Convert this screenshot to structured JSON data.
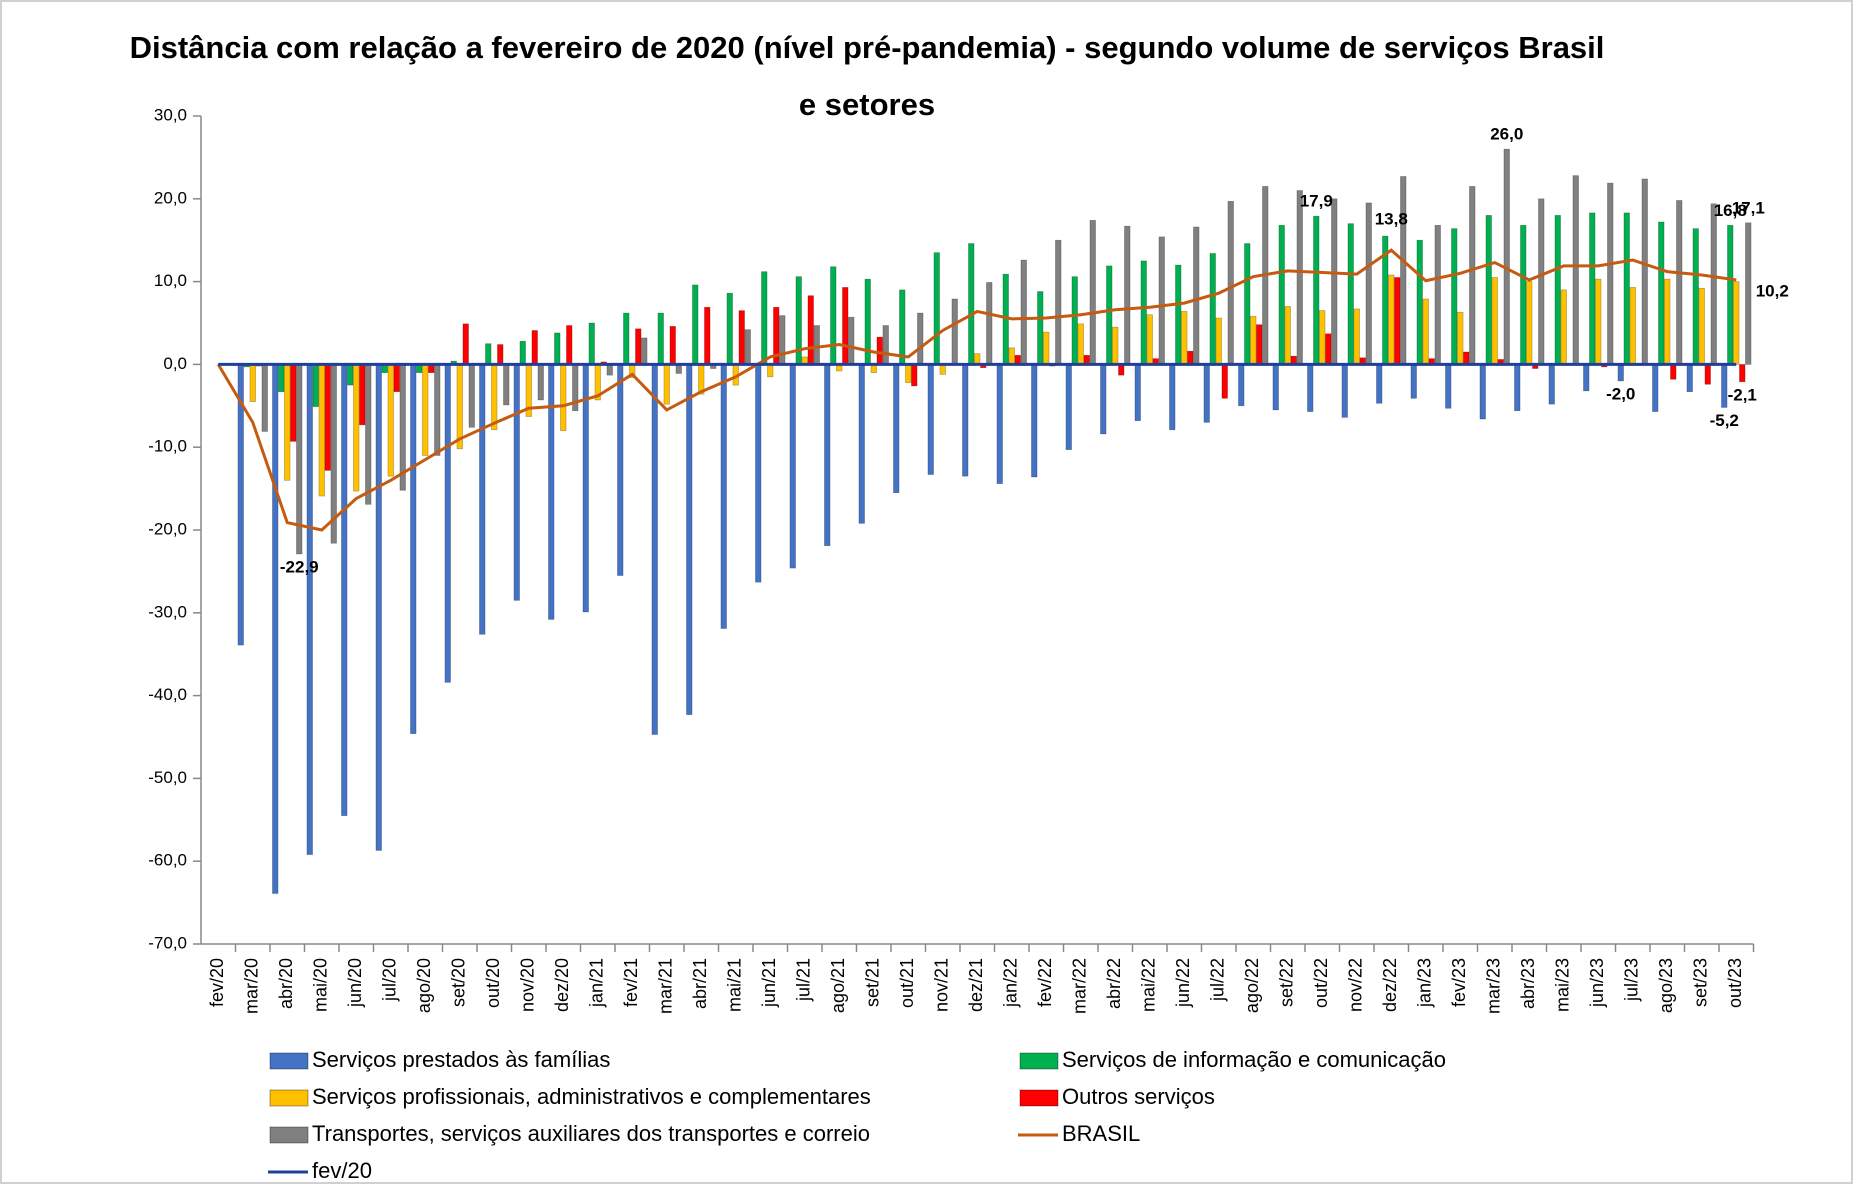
{
  "chart_data": {
    "type": "bar",
    "title": [
      "Distância com relação a fevereiro de 2020 (nível pré-pandemia) - segundo volume de serviços Brasil",
      "e setores"
    ],
    "categories": [
      "fev/20",
      "mar/20",
      "abr/20",
      "mai/20",
      "jun/20",
      "jul/20",
      "ago/20",
      "set/20",
      "out/20",
      "nov/20",
      "dez/20",
      "jan/21",
      "fev/21",
      "mar/21",
      "abr/21",
      "mai/21",
      "jun/21",
      "jul/21",
      "ago/21",
      "set/21",
      "out/21",
      "nov/21",
      "dez/21",
      "jan/22",
      "fev/22",
      "mar/22",
      "abr/22",
      "mai/22",
      "jun/22",
      "jul/22",
      "ago/22",
      "set/22",
      "out/22",
      "nov/22",
      "dez/22",
      "jan/23",
      "fev/23",
      "mar/23",
      "abr/23",
      "mai/23",
      "jun/23",
      "jul/23",
      "ago/23",
      "set/23",
      "out/23"
    ],
    "ylim": [
      -70,
      30
    ],
    "yticks": [
      {
        "value": -70,
        "label": "-70,0"
      },
      {
        "value": -60,
        "label": "-60,0"
      },
      {
        "value": -50,
        "label": "-50,0"
      },
      {
        "value": -40,
        "label": "-40,0"
      },
      {
        "value": -30,
        "label": "-30,0"
      },
      {
        "value": -20,
        "label": "-20,0"
      },
      {
        "value": -10,
        "label": "-10,0"
      },
      {
        "value": 0,
        "label": "0,0"
      },
      {
        "value": 10,
        "label": "10,0"
      },
      {
        "value": 20,
        "label": "20,0"
      },
      {
        "value": 30,
        "label": "30,0"
      }
    ],
    "series": [
      {
        "name": "Serviços prestados às famílias",
        "type": "bar",
        "color": "#4472c4",
        "values": [
          0,
          -33.9,
          -63.9,
          -59.2,
          -54.5,
          -58.7,
          -44.6,
          -38.4,
          -32.6,
          -28.5,
          -30.8,
          -29.9,
          -25.5,
          -44.7,
          -42.3,
          -31.9,
          -26.3,
          -24.6,
          -21.9,
          -19.2,
          -15.5,
          -13.3,
          -13.5,
          -14.4,
          -13.6,
          -10.3,
          -8.4,
          -6.8,
          -7.9,
          -7.0,
          -5.0,
          -5.5,
          -5.7,
          -6.4,
          -4.7,
          -4.1,
          -5.3,
          -6.6,
          -5.6,
          -4.8,
          -3.2,
          -2.0,
          -5.7,
          -3.3,
          -5.2
        ],
        "value_labels": [
          null,
          null,
          null,
          null,
          null,
          null,
          null,
          null,
          null,
          null,
          null,
          null,
          null,
          null,
          null,
          null,
          null,
          null,
          null,
          null,
          null,
          null,
          null,
          null,
          null,
          null,
          null,
          null,
          null,
          null,
          null,
          null,
          null,
          null,
          null,
          null,
          null,
          null,
          null,
          null,
          null,
          "-2,0",
          null,
          null,
          "-5,2"
        ]
      },
      {
        "name": "Serviços de informação e comunicação",
        "type": "bar",
        "color": "#00b050",
        "values": [
          0,
          -0.3,
          -3.3,
          -5.1,
          -2.5,
          -1.0,
          -1.0,
          0.4,
          2.5,
          2.8,
          3.8,
          5.0,
          6.2,
          6.2,
          9.6,
          8.6,
          11.2,
          10.6,
          11.8,
          10.3,
          9.0,
          13.5,
          14.6,
          10.9,
          8.8,
          10.6,
          11.9,
          12.5,
          12.0,
          13.4,
          14.6,
          16.8,
          17.9,
          17.0,
          15.5,
          15.0,
          16.4,
          18.0,
          16.8,
          18.0,
          18.3,
          18.3,
          17.2,
          16.4,
          16.8
        ],
        "value_labels": [
          null,
          null,
          null,
          null,
          null,
          null,
          null,
          null,
          null,
          null,
          null,
          null,
          null,
          null,
          null,
          null,
          null,
          null,
          null,
          null,
          null,
          null,
          null,
          null,
          null,
          null,
          null,
          null,
          null,
          null,
          null,
          null,
          "17,9",
          null,
          null,
          null,
          null,
          null,
          null,
          null,
          null,
          null,
          null,
          null,
          "16,8"
        ]
      },
      {
        "name": "Serviços profissionais, administrativos  e complementares",
        "type": "bar",
        "color": "#ffc000",
        "values": [
          0,
          -4.5,
          -14.0,
          -15.9,
          -15.3,
          -13.5,
          -11.0,
          -10.2,
          -7.9,
          -6.3,
          -8.0,
          -4.3,
          -1.6,
          -4.8,
          -3.6,
          -2.5,
          -1.5,
          0.9,
          -0.8,
          -1.0,
          -2.2,
          -1.2,
          1.3,
          2.0,
          3.9,
          4.9,
          4.5,
          6.0,
          6.4,
          5.6,
          5.8,
          7.0,
          6.5,
          6.7,
          10.8,
          7.9,
          6.3,
          10.5,
          10.0,
          9.0,
          10.3,
          9.3,
          10.3,
          9.2,
          10.0
        ]
      },
      {
        "name": "Outros serviços",
        "type": "bar",
        "color": "#ff0000",
        "values": [
          0,
          -0.2,
          -9.3,
          -12.8,
          -7.3,
          -3.3,
          -1.0,
          4.9,
          2.4,
          4.1,
          4.7,
          0.3,
          4.3,
          4.6,
          6.9,
          6.5,
          6.9,
          8.3,
          9.3,
          3.3,
          -2.6,
          0.0,
          -0.4,
          1.1,
          -0.2,
          1.1,
          -1.3,
          0.7,
          1.6,
          -4.1,
          4.8,
          1.0,
          3.7,
          0.8,
          10.5,
          0.7,
          1.5,
          0.6,
          -0.5,
          0.0,
          -0.3,
          0.0,
          -1.8,
          -2.4,
          -2.1
        ],
        "value_labels": [
          null,
          null,
          null,
          null,
          null,
          null,
          null,
          null,
          null,
          null,
          null,
          null,
          null,
          null,
          null,
          null,
          null,
          null,
          null,
          null,
          null,
          null,
          null,
          null,
          null,
          null,
          null,
          null,
          null,
          null,
          null,
          null,
          null,
          null,
          null,
          null,
          null,
          null,
          null,
          null,
          null,
          null,
          null,
          null,
          "-2,1"
        ]
      },
      {
        "name": "Transportes, serviços auxiliares dos transportes e correio",
        "type": "bar",
        "color": "#808080",
        "values": [
          0,
          -8.1,
          -22.9,
          -21.6,
          -16.9,
          -15.2,
          -11.0,
          -7.6,
          -4.9,
          -4.3,
          -5.6,
          -1.3,
          3.2,
          -1.1,
          -0.5,
          4.2,
          5.9,
          4.7,
          5.7,
          4.7,
          6.2,
          7.9,
          9.9,
          12.6,
          15.0,
          17.4,
          16.7,
          15.4,
          16.6,
          19.7,
          21.5,
          21.0,
          20.0,
          19.5,
          22.7,
          16.8,
          21.5,
          26.0,
          20.0,
          22.8,
          21.9,
          22.4,
          19.8,
          19.4,
          17.1
        ],
        "value_labels": [
          null,
          null,
          "-22,9",
          null,
          null,
          null,
          null,
          null,
          null,
          null,
          null,
          null,
          null,
          null,
          null,
          null,
          null,
          null,
          null,
          null,
          null,
          null,
          null,
          null,
          null,
          null,
          null,
          null,
          null,
          null,
          null,
          null,
          null,
          null,
          null,
          null,
          null,
          "26,0",
          null,
          null,
          null,
          null,
          null,
          null,
          "17,1"
        ]
      },
      {
        "name": "BRASIL",
        "type": "line",
        "color": "#c55a11",
        "values": [
          0,
          -7.0,
          -19.1,
          -20.0,
          -16.2,
          -14.0,
          -11.5,
          -9.0,
          -7.1,
          -5.3,
          -5.0,
          -3.8,
          -1.2,
          -5.5,
          -3.3,
          -1.5,
          0.9,
          1.9,
          2.4,
          1.5,
          0.9,
          4.1,
          6.4,
          5.5,
          5.6,
          6.0,
          6.6,
          6.9,
          7.4,
          8.6,
          10.6,
          11.3,
          11.1,
          10.9,
          13.8,
          10.1,
          11.0,
          12.3,
          10.2,
          11.9,
          11.9,
          12.6,
          11.2,
          10.8,
          10.2
        ],
        "value_labels": [
          null,
          null,
          null,
          null,
          null,
          null,
          null,
          null,
          null,
          null,
          null,
          null,
          null,
          null,
          null,
          null,
          null,
          null,
          null,
          null,
          null,
          null,
          null,
          null,
          null,
          null,
          null,
          null,
          null,
          null,
          null,
          null,
          null,
          null,
          "13,8",
          null,
          null,
          null,
          null,
          null,
          null,
          null,
          null,
          null,
          "10,2"
        ]
      },
      {
        "name": "fev/20",
        "type": "line",
        "color": "#203f9a",
        "values": [
          0,
          0,
          0,
          0,
          0,
          0,
          0,
          0,
          0,
          0,
          0,
          0,
          0,
          0,
          0,
          0,
          0,
          0,
          0,
          0,
          0,
          0,
          0,
          0,
          0,
          0,
          0,
          0,
          0,
          0,
          0,
          0,
          0,
          0,
          0,
          0,
          0,
          0,
          0,
          0,
          0,
          0,
          0,
          0,
          0
        ]
      }
    ]
  }
}
